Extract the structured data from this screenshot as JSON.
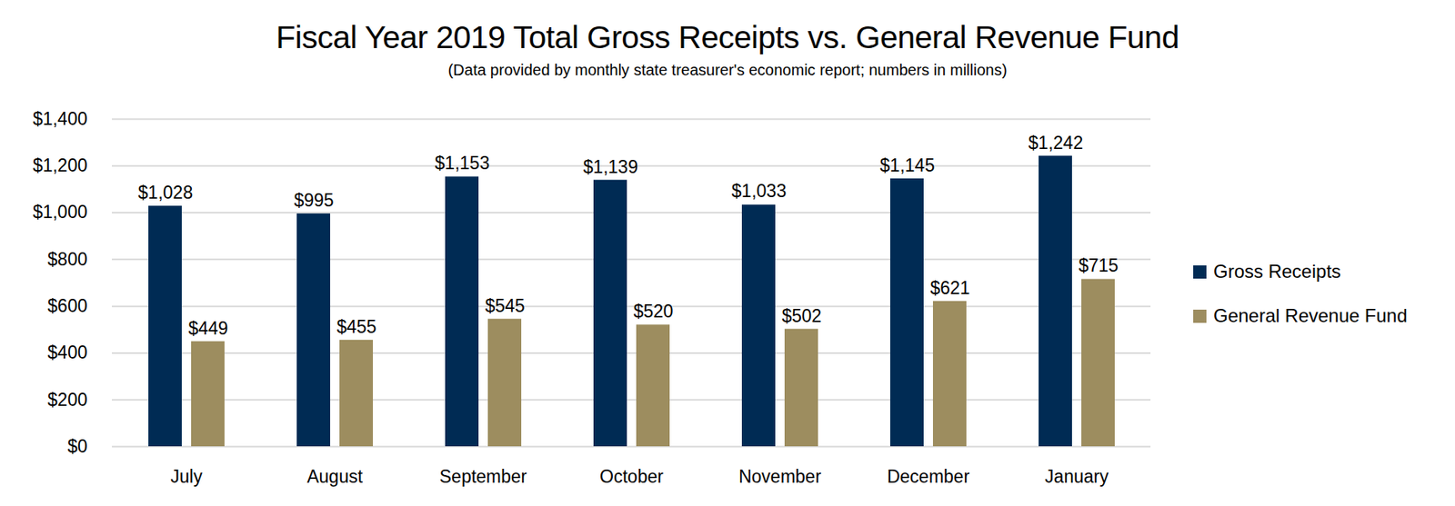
{
  "chart_data": {
    "type": "bar",
    "title": "Fiscal Year 2019 Total Gross Receipts vs. General Revenue Fund",
    "subtitle": "(Data provided by monthly state treasurer's economic report; numbers in millions)",
    "categories": [
      "July",
      "August",
      "September",
      "October",
      "November",
      "December",
      "January"
    ],
    "series": [
      {
        "name": "Gross Receipts",
        "color": "#002b54",
        "values": [
          1028,
          995,
          1153,
          1139,
          1033,
          1145,
          1242
        ],
        "value_labels": [
          "$1,028",
          "$995",
          "$1,153",
          "$1,139",
          "$1,033",
          "$1,145",
          "$1,242"
        ]
      },
      {
        "name": "General Revenue Fund",
        "color": "#9d8d5f",
        "values": [
          449,
          455,
          545,
          520,
          502,
          621,
          715
        ],
        "value_labels": [
          "$449",
          "$455",
          "$545",
          "$520",
          "$502",
          "$621",
          "$715"
        ]
      }
    ],
    "ylim": [
      0,
      1400
    ],
    "yticks": [
      {
        "value": 0,
        "label": "$0"
      },
      {
        "value": 200,
        "label": "$200"
      },
      {
        "value": 400,
        "label": "$400"
      },
      {
        "value": 600,
        "label": "$600"
      },
      {
        "value": 800,
        "label": "$800"
      },
      {
        "value": 1000,
        "label": "$1,000"
      },
      {
        "value": 1200,
        "label": "$1,200"
      },
      {
        "value": 1400,
        "label": "$1,400"
      }
    ],
    "grid": true,
    "legend": "right",
    "data_labels": true
  }
}
